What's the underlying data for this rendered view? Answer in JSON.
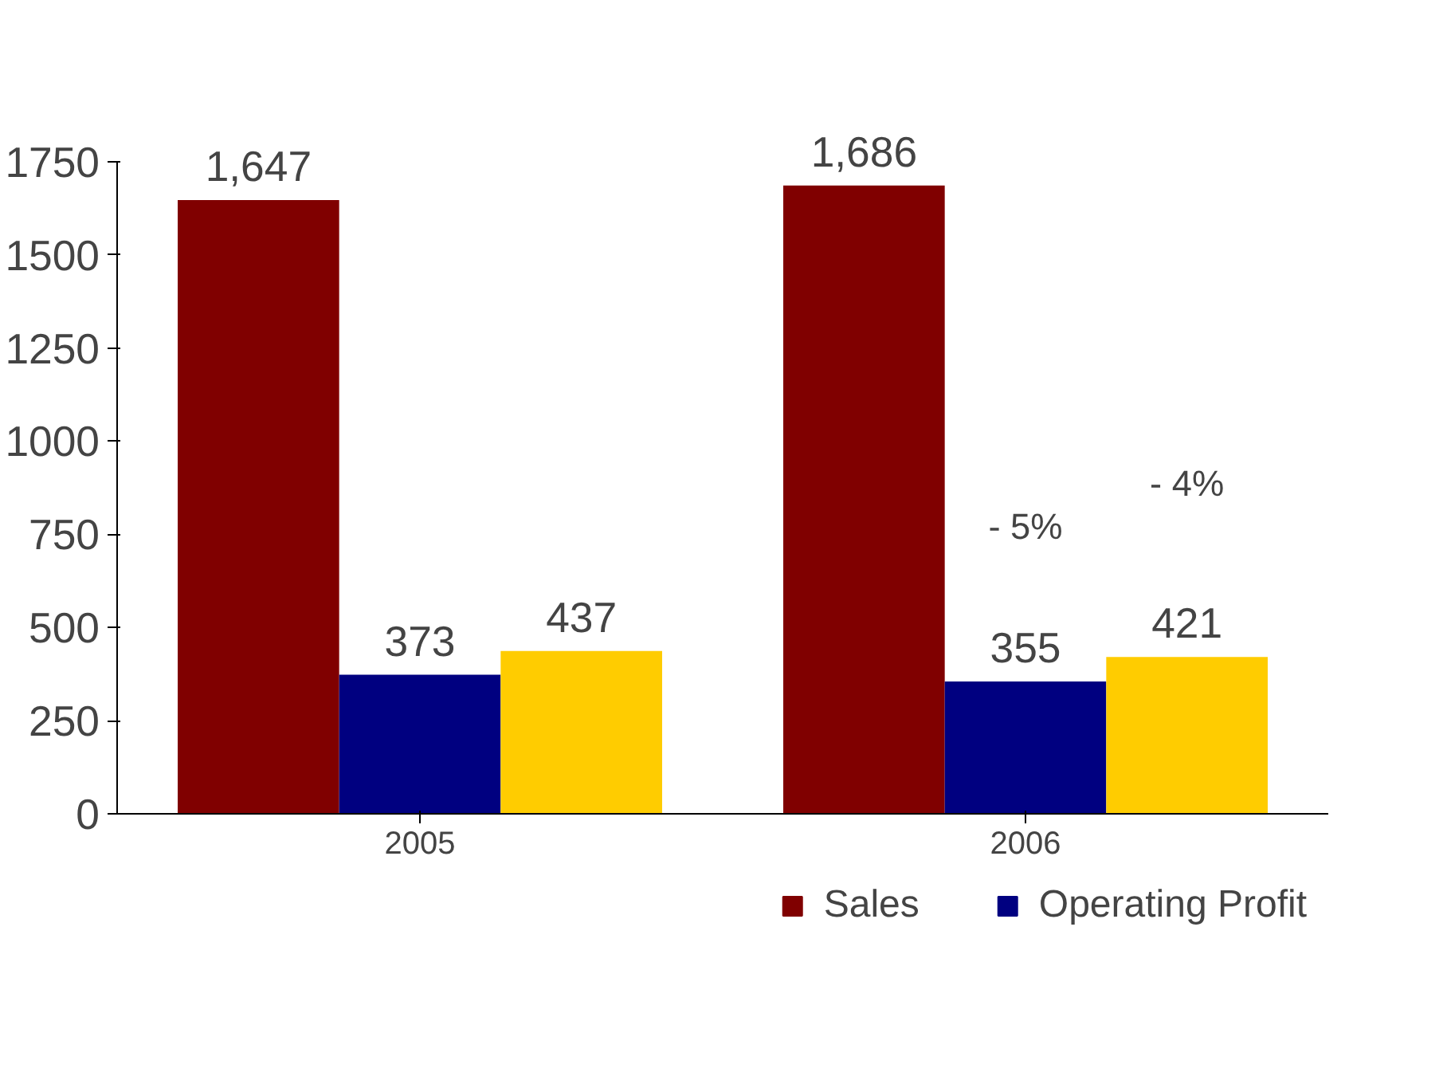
{
  "chart_data": {
    "type": "bar",
    "categories": [
      "2005",
      "2006"
    ],
    "series": [
      {
        "name": "Sales",
        "color": "#800000",
        "values": [
          1647,
          1686
        ],
        "value_labels": [
          "1,647",
          "1,686"
        ]
      },
      {
        "name": "Operating Profit",
        "color": "#000080",
        "values": [
          373,
          355
        ],
        "value_labels": [
          "373",
          "355"
        ]
      },
      {
        "color": "#ffcc00",
        "values": [
          437,
          421
        ],
        "value_labels": [
          "437",
          "421"
        ]
      }
    ],
    "annotations": [
      "- 5%",
      "- 4%"
    ],
    "ylim": [
      0,
      1750
    ],
    "yticks": [
      0,
      250,
      500,
      750,
      1000,
      1250,
      1500,
      1750
    ],
    "grid": false,
    "legend": "bottom"
  }
}
